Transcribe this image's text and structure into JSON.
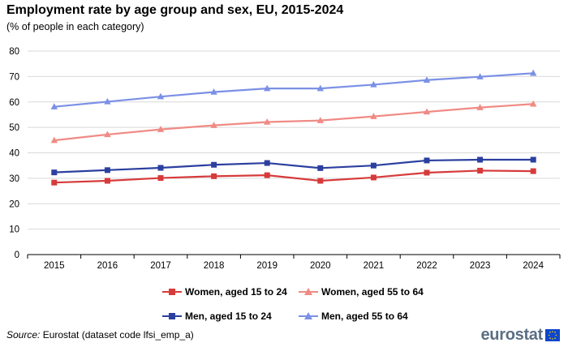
{
  "title": "Employment rate by age group and sex, EU, 2015-2024",
  "subtitle": "(% of people in each category)",
  "source_label": "Source:",
  "source_text": "Eurostat (dataset code lfsi_emp_a)",
  "logo_text": "eurostat",
  "chart_data": {
    "type": "line",
    "title": "Employment rate by age group and sex, EU, 2015-2024",
    "xlabel": "",
    "ylabel": "",
    "ylim": [
      0,
      80
    ],
    "yticks": [
      0,
      10,
      20,
      30,
      40,
      50,
      60,
      70,
      80
    ],
    "categories": [
      "2015",
      "2016",
      "2017",
      "2018",
      "2019",
      "2020",
      "2021",
      "2022",
      "2023",
      "2024"
    ],
    "grid": "horizontal",
    "legend_position": "bottom",
    "series": [
      {
        "name": "Women, aged 15 to 24",
        "color": "#d73a3a",
        "marker": "square",
        "values": [
          28.3,
          29.0,
          30.1,
          30.8,
          31.2,
          29.0,
          30.3,
          32.2,
          33.0,
          32.8
        ]
      },
      {
        "name": "Women, aged 55 to 64",
        "color": "#f08a84",
        "marker": "triangle",
        "values": [
          44.9,
          47.2,
          49.2,
          50.8,
          52.1,
          52.7,
          54.3,
          56.1,
          57.8,
          59.2
        ]
      },
      {
        "name": "Men, aged 15 to 24",
        "color": "#2b3f9f",
        "marker": "square",
        "values": [
          32.3,
          33.2,
          34.1,
          35.3,
          36.0,
          34.0,
          35.0,
          37.0,
          37.3,
          37.3
        ]
      },
      {
        "name": "Men, aged 55 to 64",
        "color": "#7b90e6",
        "marker": "triangle",
        "values": [
          58.1,
          60.1,
          62.1,
          63.9,
          65.3,
          65.3,
          66.8,
          68.6,
          69.9,
          71.3
        ]
      }
    ]
  }
}
